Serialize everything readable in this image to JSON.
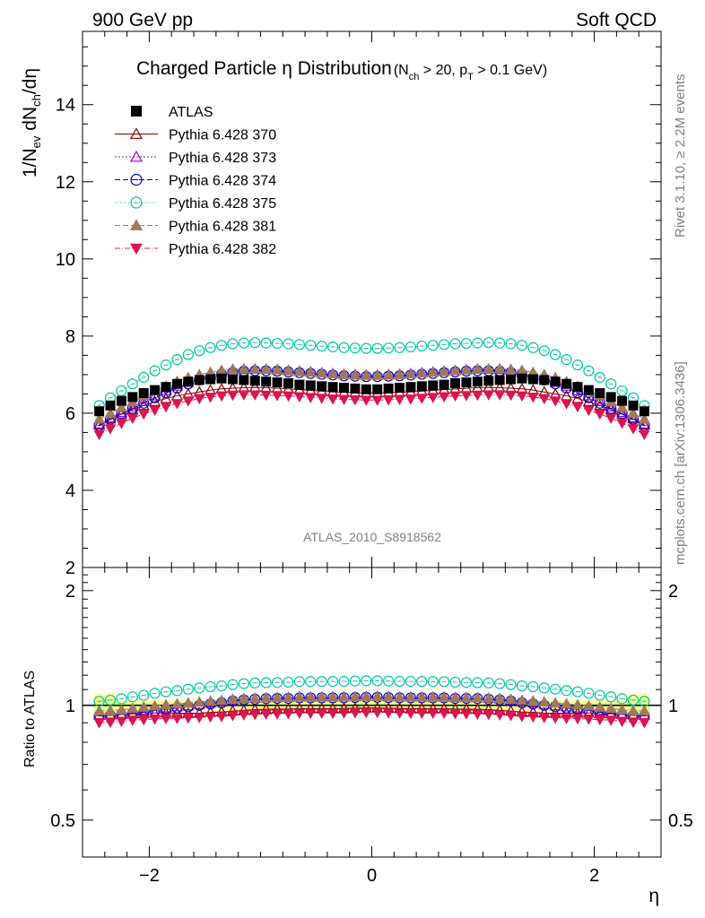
{
  "header": {
    "energy_label": "900 GeV pp",
    "category_label": "Soft QCD"
  },
  "side_labels": {
    "rivet": "Rivet 3.1.10, ≥ 2.2M events",
    "mcplots": "mcplots.cern.ch [arXiv:1306.3436]"
  },
  "chart_data": [
    {
      "type": "scatter",
      "panel": "main",
      "title": "Charged Particle η Distribution",
      "subtitle": "(N_ch > 20, p_T > 0.1 GeV)",
      "ylabel": "1/N_ev dN_ch/dη",
      "xlabel": "",
      "analysis_label": "ATLAS_2010_S8918562",
      "xlim": [
        -2.6,
        2.6
      ],
      "ylim": [
        2,
        15.9
      ],
      "yticks": [
        "2",
        "4",
        "6",
        "8",
        "10",
        "12",
        "14"
      ],
      "legend_position": "top-left",
      "x": [
        -2.45,
        -2.35,
        -2.25,
        -2.15,
        -2.05,
        -1.95,
        -1.85,
        -1.75,
        -1.65,
        -1.55,
        -1.45,
        -1.35,
        -1.25,
        -1.15,
        -1.05,
        -0.95,
        -0.85,
        -0.75,
        -0.65,
        -0.55,
        -0.45,
        -0.35,
        -0.25,
        -0.15,
        -0.05,
        0.05,
        0.15,
        0.25,
        0.35,
        0.45,
        0.55,
        0.65,
        0.75,
        0.85,
        0.95,
        1.05,
        1.15,
        1.25,
        1.35,
        1.45,
        1.55,
        1.65,
        1.75,
        1.85,
        1.95,
        2.05,
        2.15,
        2.25,
        2.35,
        2.45
      ],
      "series": [
        {
          "name": "ATLAS",
          "marker": "square",
          "color": "#000000",
          "values": [
            6.05,
            6.2,
            6.32,
            6.42,
            6.52,
            6.6,
            6.68,
            6.76,
            6.82,
            6.86,
            6.88,
            6.9,
            6.88,
            6.86,
            6.84,
            6.82,
            6.8,
            6.78,
            6.74,
            6.72,
            6.7,
            6.68,
            6.66,
            6.64,
            6.62,
            6.62,
            6.64,
            6.66,
            6.68,
            6.7,
            6.72,
            6.74,
            6.78,
            6.8,
            6.82,
            6.84,
            6.86,
            6.88,
            6.9,
            6.88,
            6.86,
            6.82,
            6.76,
            6.68,
            6.6,
            6.52,
            6.42,
            6.32,
            6.2,
            6.05
          ]
        },
        {
          "name": "Pythia 6.428 370",
          "marker": "triangle-open",
          "color": "#800000",
          "values": [
            5.7,
            5.85,
            5.98,
            6.1,
            6.2,
            6.3,
            6.38,
            6.45,
            6.5,
            6.55,
            6.6,
            6.63,
            6.65,
            6.66,
            6.67,
            6.66,
            6.65,
            6.63,
            6.61,
            6.59,
            6.57,
            6.55,
            6.54,
            6.53,
            6.52,
            6.52,
            6.53,
            6.54,
            6.55,
            6.57,
            6.59,
            6.61,
            6.63,
            6.65,
            6.66,
            6.67,
            6.66,
            6.65,
            6.63,
            6.6,
            6.55,
            6.5,
            6.45,
            6.38,
            6.3,
            6.2,
            6.1,
            5.98,
            5.85,
            5.7
          ]
        },
        {
          "name": "Pythia 6.428 373",
          "marker": "triangle-open",
          "color": "#9400d3",
          "values": [
            5.72,
            5.88,
            6.02,
            6.16,
            6.3,
            6.45,
            6.58,
            6.7,
            6.8,
            6.9,
            6.98,
            7.05,
            7.1,
            7.13,
            7.14,
            7.14,
            7.13,
            7.11,
            7.09,
            7.07,
            7.05,
            7.03,
            7.01,
            7.0,
            6.99,
            6.99,
            7.0,
            7.01,
            7.03,
            7.05,
            7.07,
            7.09,
            7.11,
            7.13,
            7.14,
            7.14,
            7.13,
            7.1,
            7.05,
            6.98,
            6.9,
            6.8,
            6.7,
            6.58,
            6.45,
            6.3,
            6.16,
            6.02,
            5.88,
            5.72
          ]
        },
        {
          "name": "Pythia 6.428 374",
          "marker": "circle-open",
          "color": "#0000cd",
          "values": [
            5.68,
            5.84,
            5.98,
            6.12,
            6.26,
            6.4,
            6.53,
            6.65,
            6.76,
            6.86,
            6.94,
            7.01,
            7.06,
            7.09,
            7.1,
            7.1,
            7.09,
            7.07,
            7.05,
            7.03,
            7.01,
            6.99,
            6.97,
            6.96,
            6.95,
            6.95,
            6.96,
            6.97,
            6.99,
            7.01,
            7.03,
            7.05,
            7.07,
            7.09,
            7.1,
            7.1,
            7.09,
            7.06,
            7.01,
            6.94,
            6.86,
            6.76,
            6.65,
            6.53,
            6.4,
            6.26,
            6.12,
            5.98,
            5.84,
            5.68
          ]
        },
        {
          "name": "Pythia 6.428 375",
          "marker": "circle-open",
          "color": "#00c8a0",
          "values": [
            6.2,
            6.4,
            6.58,
            6.76,
            6.93,
            7.1,
            7.25,
            7.39,
            7.52,
            7.62,
            7.7,
            7.76,
            7.8,
            7.82,
            7.83,
            7.82,
            7.81,
            7.8,
            7.78,
            7.76,
            7.74,
            7.72,
            7.7,
            7.69,
            7.68,
            7.68,
            7.69,
            7.7,
            7.72,
            7.74,
            7.76,
            7.78,
            7.8,
            7.81,
            7.82,
            7.83,
            7.82,
            7.8,
            7.76,
            7.7,
            7.62,
            7.52,
            7.39,
            7.25,
            7.1,
            6.93,
            6.76,
            6.58,
            6.4,
            6.2
          ]
        },
        {
          "name": "Pythia 6.428 381",
          "marker": "triangle-filled",
          "color": "#a0785a",
          "values": [
            5.85,
            6.0,
            6.15,
            6.3,
            6.45,
            6.58,
            6.7,
            6.82,
            6.92,
            7.0,
            7.06,
            7.11,
            7.14,
            7.15,
            7.15,
            7.14,
            7.12,
            7.1,
            7.08,
            7.06,
            7.04,
            7.02,
            7.0,
            6.99,
            6.98,
            6.98,
            6.99,
            7.0,
            7.02,
            7.04,
            7.06,
            7.08,
            7.1,
            7.12,
            7.14,
            7.15,
            7.15,
            7.14,
            7.11,
            7.06,
            7.0,
            6.92,
            6.82,
            6.7,
            6.58,
            6.45,
            6.3,
            6.15,
            6.0,
            5.85
          ]
        },
        {
          "name": "Pythia 6.428 382",
          "marker": "triangle-down-filled",
          "color": "#dc1450",
          "values": [
            5.45,
            5.6,
            5.74,
            5.87,
            5.98,
            6.08,
            6.17,
            6.25,
            6.32,
            6.38,
            6.42,
            6.45,
            6.47,
            6.48,
            6.48,
            6.47,
            6.46,
            6.45,
            6.43,
            6.41,
            6.39,
            6.37,
            6.36,
            6.35,
            6.34,
            6.34,
            6.35,
            6.36,
            6.37,
            6.39,
            6.41,
            6.43,
            6.45,
            6.46,
            6.47,
            6.48,
            6.48,
            6.47,
            6.45,
            6.42,
            6.38,
            6.32,
            6.25,
            6.17,
            6.08,
            5.98,
            5.87,
            5.74,
            5.6,
            5.45
          ]
        }
      ]
    },
    {
      "type": "scatter",
      "panel": "ratio",
      "ylabel": "Ratio to ATLAS",
      "xlabel": "η",
      "xlim": [
        -2.6,
        2.6
      ],
      "ylim": [
        0.4,
        2.3
      ],
      "log_y": true,
      "xticks": [
        "−2",
        "0",
        "2"
      ],
      "yticks_left": [
        "0.5",
        "1",
        "2"
      ],
      "yticks_right": [
        "0.5",
        "1",
        "2"
      ],
      "uncertainty_band": {
        "color": "#ffff99",
        "inner_color": "#dfff8c"
      }
    }
  ]
}
